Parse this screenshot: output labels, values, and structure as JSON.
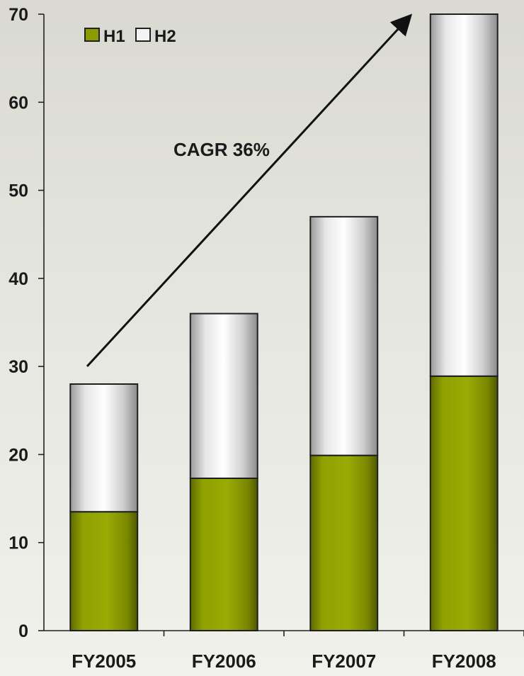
{
  "chart_data": {
    "type": "bar",
    "stacked": true,
    "categories": [
      "FY2005",
      "FY2006",
      "FY2007",
      "FY2008"
    ],
    "series": [
      {
        "name": "H1",
        "values": [
          13.5,
          17.3,
          19.9,
          28.9
        ],
        "color": "#8c9c00"
      },
      {
        "name": "H2",
        "values": [
          14.5,
          18.7,
          27.1,
          41.1
        ],
        "color": "#d8d8d8"
      }
    ],
    "ylim": [
      0,
      70
    ],
    "yticks": [
      0,
      10,
      20,
      30,
      40,
      50,
      60,
      70
    ],
    "grid": false,
    "legend": "top-left",
    "annotations": [
      {
        "text": "CAGR 36%",
        "type": "arrow"
      }
    ],
    "title": "",
    "xlabel": "",
    "ylabel": ""
  }
}
